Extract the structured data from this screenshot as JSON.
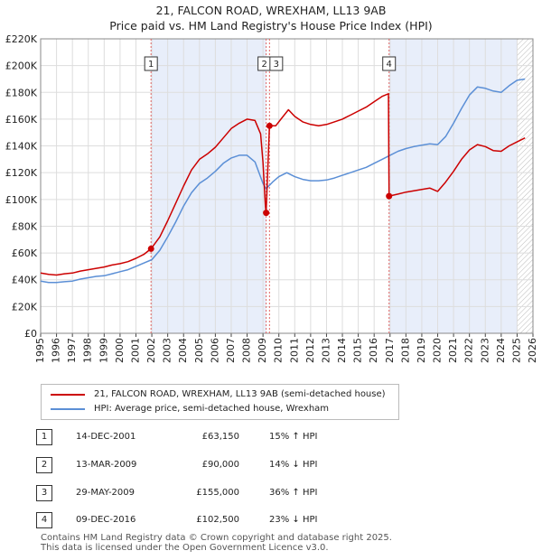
{
  "title": {
    "line1": "21, FALCON ROAD, WREXHAM, LL13 9AB",
    "line2": "Price paid vs. HM Land Registry's House Price Index (HPI)"
  },
  "colors": {
    "property": "#cc0000",
    "hpi": "#5b8fd6",
    "shade": "#e8eefa",
    "grid": "#dddddd",
    "marker_line": "#e06666"
  },
  "chart_data": {
    "type": "line",
    "title": "21, FALCON ROAD, WREXHAM, LL13 9AB — Price paid vs. HM Land Registry's House Price Index (HPI)",
    "xlim": [
      1995,
      2026
    ],
    "ylim": [
      0,
      220000
    ],
    "x_ticks": [
      "1995",
      "1996",
      "1997",
      "1998",
      "1999",
      "2000",
      "2001",
      "2002",
      "2003",
      "2004",
      "2005",
      "2006",
      "2007",
      "2008",
      "2009",
      "2010",
      "2011",
      "2012",
      "2013",
      "2014",
      "2015",
      "2016",
      "2017",
      "2018",
      "2019",
      "2020",
      "2021",
      "2022",
      "2023",
      "2024",
      "2025",
      "2026"
    ],
    "y_ticks": [
      {
        "value": 0,
        "label": "£0"
      },
      {
        "value": 20000,
        "label": "£20K"
      },
      {
        "value": 40000,
        "label": "£40K"
      },
      {
        "value": 60000,
        "label": "£60K"
      },
      {
        "value": 80000,
        "label": "£80K"
      },
      {
        "value": 100000,
        "label": "£100K"
      },
      {
        "value": 120000,
        "label": "£120K"
      },
      {
        "value": 140000,
        "label": "£140K"
      },
      {
        "value": 160000,
        "label": "£160K"
      },
      {
        "value": 180000,
        "label": "£180K"
      },
      {
        "value": 200000,
        "label": "£200K"
      },
      {
        "value": 220000,
        "label": "£220K"
      }
    ],
    "shaded_ranges": [
      [
        2001.95,
        2009.2
      ],
      [
        2016.94,
        2025.0
      ]
    ],
    "hatched_from": 2025.0,
    "series": [
      {
        "name": "21, FALCON ROAD, WREXHAM, LL13 9AB (semi-detached house)",
        "color": "#cc0000",
        "points": [
          [
            1995.0,
            45000
          ],
          [
            1995.5,
            44000
          ],
          [
            1996.0,
            43500
          ],
          [
            1996.5,
            44500
          ],
          [
            1997.0,
            45000
          ],
          [
            1997.5,
            46500
          ],
          [
            1998.0,
            47500
          ],
          [
            1998.5,
            48500
          ],
          [
            1999.0,
            49500
          ],
          [
            1999.5,
            51000
          ],
          [
            2000.0,
            52000
          ],
          [
            2000.5,
            53500
          ],
          [
            2001.0,
            56000
          ],
          [
            2001.5,
            59000
          ],
          [
            2001.95,
            63150
          ],
          [
            2002.5,
            72000
          ],
          [
            2003.0,
            84000
          ],
          [
            2003.5,
            97000
          ],
          [
            2004.0,
            110000
          ],
          [
            2004.5,
            122000
          ],
          [
            2005.0,
            130000
          ],
          [
            2005.5,
            134000
          ],
          [
            2006.0,
            139000
          ],
          [
            2006.5,
            146000
          ],
          [
            2007.0,
            153000
          ],
          [
            2007.5,
            157000
          ],
          [
            2008.0,
            160000
          ],
          [
            2008.5,
            159000
          ],
          [
            2008.85,
            149000
          ],
          [
            2009.0,
            128000
          ],
          [
            2009.15,
            95000
          ],
          [
            2009.2,
            90000
          ],
          [
            2009.41,
            155000
          ],
          [
            2009.8,
            155000
          ],
          [
            2010.2,
            161000
          ],
          [
            2010.6,
            167000
          ],
          [
            2011.0,
            162000
          ],
          [
            2011.5,
            158000
          ],
          [
            2012.0,
            156000
          ],
          [
            2012.5,
            155000
          ],
          [
            2013.0,
            156000
          ],
          [
            2013.5,
            158000
          ],
          [
            2014.0,
            160000
          ],
          [
            2014.5,
            163000
          ],
          [
            2015.0,
            166000
          ],
          [
            2015.5,
            169000
          ],
          [
            2016.0,
            173000
          ],
          [
            2016.5,
            177000
          ],
          [
            2016.9,
            179000
          ],
          [
            2016.94,
            102500
          ],
          [
            2017.5,
            104000
          ],
          [
            2018.0,
            105500
          ],
          [
            2018.5,
            106500
          ],
          [
            2019.0,
            107500
          ],
          [
            2019.5,
            108500
          ],
          [
            2020.0,
            106000
          ],
          [
            2020.5,
            113000
          ],
          [
            2021.0,
            121000
          ],
          [
            2021.5,
            130000
          ],
          [
            2022.0,
            137000
          ],
          [
            2022.5,
            141000
          ],
          [
            2023.0,
            139500
          ],
          [
            2023.5,
            136500
          ],
          [
            2024.0,
            136000
          ],
          [
            2024.5,
            140000
          ],
          [
            2025.0,
            143000
          ],
          [
            2025.5,
            146000
          ]
        ]
      },
      {
        "name": "HPI: Average price, semi-detached house, Wrexham",
        "color": "#5b8fd6",
        "points": [
          [
            1995.0,
            39000
          ],
          [
            1995.5,
            38000
          ],
          [
            1996.0,
            38000
          ],
          [
            1996.5,
            38500
          ],
          [
            1997.0,
            39000
          ],
          [
            1997.5,
            40500
          ],
          [
            1998.0,
            41500
          ],
          [
            1998.5,
            42500
          ],
          [
            1999.0,
            43000
          ],
          [
            1999.5,
            44500
          ],
          [
            2000.0,
            46000
          ],
          [
            2000.5,
            47500
          ],
          [
            2001.0,
            50000
          ],
          [
            2001.5,
            52500
          ],
          [
            2002.0,
            55000
          ],
          [
            2002.5,
            62000
          ],
          [
            2003.0,
            72000
          ],
          [
            2003.5,
            83000
          ],
          [
            2004.0,
            95000
          ],
          [
            2004.5,
            105000
          ],
          [
            2005.0,
            112000
          ],
          [
            2005.5,
            116000
          ],
          [
            2006.0,
            121000
          ],
          [
            2006.5,
            127000
          ],
          [
            2007.0,
            131000
          ],
          [
            2007.5,
            133000
          ],
          [
            2008.0,
            133000
          ],
          [
            2008.5,
            128000
          ],
          [
            2009.0,
            112000
          ],
          [
            2009.2,
            108000
          ],
          [
            2009.6,
            113000
          ],
          [
            2010.0,
            117000
          ],
          [
            2010.5,
            120000
          ],
          [
            2011.0,
            117000
          ],
          [
            2011.5,
            115000
          ],
          [
            2012.0,
            114000
          ],
          [
            2012.5,
            114000
          ],
          [
            2013.0,
            114500
          ],
          [
            2013.5,
            116000
          ],
          [
            2014.0,
            118000
          ],
          [
            2014.5,
            120000
          ],
          [
            2015.0,
            122000
          ],
          [
            2015.5,
            124000
          ],
          [
            2016.0,
            127000
          ],
          [
            2016.5,
            130000
          ],
          [
            2017.0,
            133000
          ],
          [
            2017.5,
            136000
          ],
          [
            2018.0,
            138000
          ],
          [
            2018.5,
            139500
          ],
          [
            2019.0,
            140500
          ],
          [
            2019.5,
            141500
          ],
          [
            2020.0,
            141000
          ],
          [
            2020.5,
            147000
          ],
          [
            2021.0,
            157000
          ],
          [
            2021.5,
            168000
          ],
          [
            2022.0,
            178000
          ],
          [
            2022.5,
            184000
          ],
          [
            2023.0,
            183000
          ],
          [
            2023.5,
            181000
          ],
          [
            2024.0,
            180000
          ],
          [
            2024.5,
            185000
          ],
          [
            2025.0,
            189000
          ],
          [
            2025.5,
            190000
          ]
        ]
      }
    ],
    "markers": [
      {
        "label": "1",
        "x": 2001.95,
        "y": 63150
      },
      {
        "label": "2",
        "x": 2009.2,
        "y": 90000
      },
      {
        "label": "3",
        "x": 2009.41,
        "y": 155000
      },
      {
        "label": "4",
        "x": 2016.94,
        "y": 102500
      }
    ]
  },
  "legend": {
    "property_label": "21, FALCON ROAD, WREXHAM, LL13 9AB (semi-detached house)",
    "hpi_label": "HPI: Average price, semi-detached house, Wrexham"
  },
  "transactions": [
    {
      "num": "1",
      "date": "14-DEC-2001",
      "price": "£63,150",
      "hpi": "15% ↑ HPI"
    },
    {
      "num": "2",
      "date": "13-MAR-2009",
      "price": "£90,000",
      "hpi": "14% ↓ HPI"
    },
    {
      "num": "3",
      "date": "29-MAY-2009",
      "price": "£155,000",
      "hpi": "36% ↑ HPI"
    },
    {
      "num": "4",
      "date": "09-DEC-2016",
      "price": "£102,500",
      "hpi": "23% ↓ HPI"
    }
  ],
  "footer": {
    "line1": "Contains HM Land Registry data © Crown copyright and database right 2025.",
    "line2": "This data is licensed under the Open Government Licence v3.0."
  }
}
